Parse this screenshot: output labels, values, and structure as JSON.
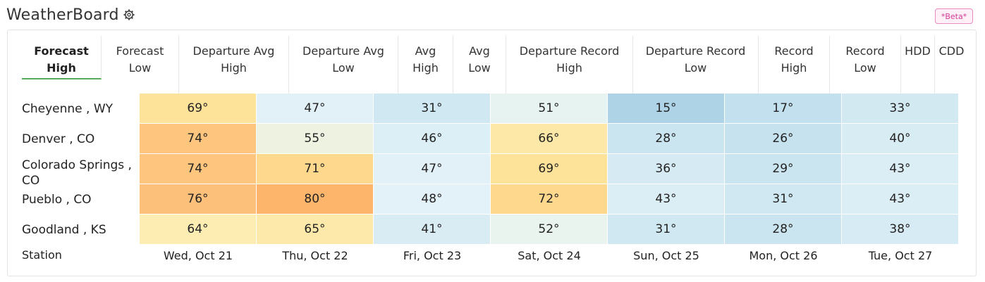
{
  "app": {
    "title": "WeatherBoard",
    "badge": "*Beta*"
  },
  "tabs": [
    {
      "label": "Forecast\nHigh",
      "active": true
    },
    {
      "label": "Forecast\nLow"
    },
    {
      "label": "Departure Avg\nHigh"
    },
    {
      "label": "Departure Avg\nLow"
    },
    {
      "label": "Avg\nHigh"
    },
    {
      "label": "Avg\nLow"
    },
    {
      "label": "Departure Record\nHigh"
    },
    {
      "label": "Departure Record\nLow"
    },
    {
      "label": "Record\nHigh"
    },
    {
      "label": "Record\nLow"
    },
    {
      "label": "HDD"
    },
    {
      "label": "CDD"
    }
  ],
  "table": {
    "station_header": "Station",
    "days": [
      "Wed, Oct 21",
      "Thu, Oct 22",
      "Fri, Oct 23",
      "Sat, Oct 24",
      "Sun, Oct 25",
      "Mon, Oct 26",
      "Tue, Oct 27"
    ],
    "rows": [
      {
        "station": "Cheyenne , WY",
        "values": [
          "69°",
          "47°",
          "31°",
          "51°",
          "15°",
          "17°",
          "33°"
        ],
        "colors": [
          "#fde29a",
          "#e2f1f8",
          "#cfe8f1",
          "#e6f3f1",
          "#aed3e6",
          "#c3e0ee",
          "#d2e9f2"
        ]
      },
      {
        "station": "Denver , CO",
        "values": [
          "74°",
          "55°",
          "46°",
          "66°",
          "28°",
          "26°",
          "40°"
        ],
        "colors": [
          "#fdc57e",
          "#eef3e1",
          "#ddeff6",
          "#fde8a7",
          "#cbe5f0",
          "#c6e2ef",
          "#d8ecf3"
        ]
      },
      {
        "station": "Colorado Springs , CO",
        "values": [
          "74°",
          "71°",
          "47°",
          "69°",
          "36°",
          "29°",
          "43°"
        ],
        "colors": [
          "#fdc57e",
          "#fdd88d",
          "#e2f1f8",
          "#fde29a",
          "#d5eaf3",
          "#cbe5f0",
          "#dbedf5"
        ]
      },
      {
        "station": "Pueblo , CO",
        "values": [
          "76°",
          "80°",
          "48°",
          "72°",
          "43°",
          "31°",
          "43°"
        ],
        "colors": [
          "#fdc07a",
          "#fdb46b",
          "#e3f2f8",
          "#fdd88d",
          "#dbedf5",
          "#cfe8f1",
          "#dbedf5"
        ]
      },
      {
        "station": "Goodland , KS",
        "values": [
          "64°",
          "65°",
          "41°",
          "52°",
          "31°",
          "28°",
          "38°"
        ],
        "colors": [
          "#fdedb3",
          "#fdeaaa",
          "#d9ecf4",
          "#e9f4ee",
          "#cfe8f1",
          "#cbe5f0",
          "#d6ebf3"
        ]
      }
    ]
  },
  "colors": {
    "accent_green": "#5aa85a",
    "beta_pink": "#d2399a"
  },
  "icons": {
    "settings": "gear-icon"
  }
}
